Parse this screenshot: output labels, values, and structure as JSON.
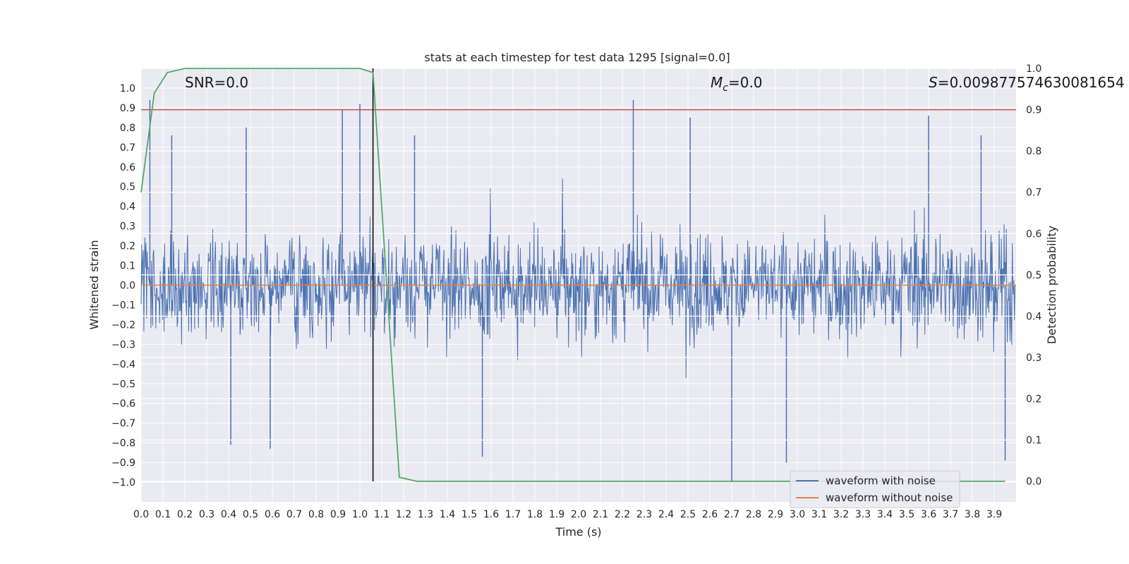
{
  "chart_data": {
    "type": "line",
    "title": "stats at each timestep for test data 1295 [signal=0.0]",
    "xlabel": "Time (s)",
    "ylabel": "Whitened strain",
    "y2label": "Detection probability",
    "xlim": [
      0.0,
      4.0
    ],
    "ylim": [
      -1.1,
      1.1
    ],
    "y2lim": [
      -0.05,
      1.0
    ],
    "xticks": [
      "0.0",
      "0.1",
      "0.2",
      "0.3",
      "0.4",
      "0.5",
      "0.6",
      "0.7",
      "0.8",
      "0.9",
      "1.0",
      "1.1",
      "1.2",
      "1.3",
      "1.4",
      "1.5",
      "1.6",
      "1.7",
      "1.8",
      "1.9",
      "2.0",
      "2.1",
      "2.2",
      "2.3",
      "2.4",
      "2.5",
      "2.6",
      "2.7",
      "2.8",
      "2.9",
      "3.0",
      "3.1",
      "3.2",
      "3.3",
      "3.4",
      "3.5",
      "3.6",
      "3.7",
      "3.8",
      "3.9"
    ],
    "yticks": [
      "1.0",
      "0.9",
      "0.8",
      "0.7",
      "0.6",
      "0.5",
      "0.4",
      "0.3",
      "0.2",
      "0.1",
      "0.0",
      "−0.1",
      "−0.2",
      "−0.3",
      "−0.4",
      "−0.5",
      "−0.6",
      "−0.7",
      "−0.8",
      "−0.9",
      "−1.0"
    ],
    "y2ticks": [
      "1.0",
      "0.9",
      "0.8",
      "0.7",
      "0.6",
      "0.5",
      "0.4",
      "0.3",
      "0.2",
      "0.1",
      "0.0"
    ],
    "annotations": {
      "snr": "SNR=0.0",
      "mc_symbol": "M",
      "mc_sub": "c",
      "mc_value": "=0.0",
      "s_symbol": "S",
      "s_value": "=0.009877574630081654"
    },
    "threshold": 0.9,
    "marker_time": 1.06,
    "series": [
      {
        "name": "waveform with noise",
        "axis": "left",
        "color": "#4c72b0",
        "description": "dense whitened noise, amplitude ~±0.4 with spikes to about ±0.95",
        "notable_peaks": [
          [
            0.04,
            0.94
          ],
          [
            0.14,
            0.76
          ],
          [
            0.48,
            0.8
          ],
          [
            0.92,
            0.89
          ],
          [
            1.0,
            0.92
          ],
          [
            1.25,
            0.76
          ],
          [
            2.25,
            0.94
          ],
          [
            2.51,
            0.85
          ],
          [
            3.6,
            0.86
          ],
          [
            3.84,
            0.76
          ]
        ],
        "notable_troughs": [
          [
            0.41,
            -0.81
          ],
          [
            0.59,
            -0.83
          ],
          [
            1.56,
            -0.87
          ],
          [
            2.7,
            -1.0
          ],
          [
            2.95,
            -0.9
          ],
          [
            3.95,
            -0.89
          ]
        ]
      },
      {
        "name": "waveform without noise",
        "axis": "left",
        "color": "#dd8452",
        "values_constant": 0.0
      },
      {
        "name": "detection probability",
        "axis": "right",
        "color": "#55a868",
        "x": [
          0.0,
          0.06,
          0.12,
          0.2,
          0.35,
          0.5,
          0.7,
          0.8,
          0.9,
          1.0,
          1.06,
          1.12,
          1.18,
          1.26,
          1.4,
          2.0,
          2.8,
          3.0,
          3.95
        ],
        "values": [
          0.7,
          0.94,
          0.99,
          1.0,
          1.0,
          1.0,
          1.0,
          1.0,
          1.0,
          1.0,
          0.99,
          0.5,
          0.01,
          0.0,
          0.0,
          0.0,
          0.0,
          0.0,
          0.0
        ]
      },
      {
        "name": "threshold",
        "axis": "right",
        "color": "#c44e52",
        "values_constant": 0.9
      }
    ],
    "legend": {
      "placement": "lower-right",
      "entries": [
        {
          "label": "waveform with noise",
          "color": "#4c72b0"
        },
        {
          "label": "waveform without noise",
          "color": "#dd8452"
        }
      ]
    }
  }
}
